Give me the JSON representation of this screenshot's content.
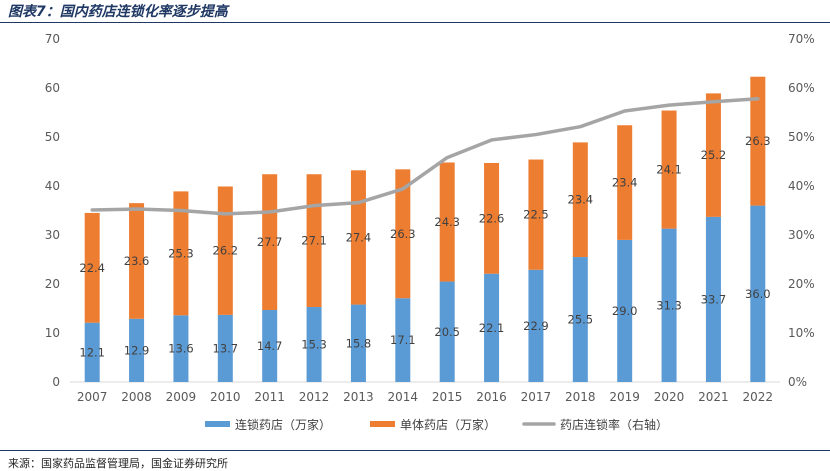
{
  "figure": {
    "title": "图表7：国内药店连锁化率逐步提高",
    "source": "来源：国家药品监督管理局，国金证券研究所"
  },
  "chart_data": {
    "type": "bar",
    "stacked": true,
    "categories": [
      "2007",
      "2008",
      "2009",
      "2010",
      "2011",
      "2012",
      "2013",
      "2014",
      "2015",
      "2016",
      "2017",
      "2018",
      "2019",
      "2020",
      "2021",
      "2022"
    ],
    "series": [
      {
        "name": "连锁药店（万家）",
        "type": "bar",
        "axis": "left",
        "color": "#5b9bd5",
        "values": [
          12.1,
          12.9,
          13.6,
          13.7,
          14.7,
          15.3,
          15.8,
          17.1,
          20.5,
          22.1,
          22.9,
          25.5,
          29.0,
          31.3,
          33.7,
          36.0
        ],
        "labels": [
          "12.1",
          "12.9",
          "13.6",
          "13.7",
          "14.7",
          "15.3",
          "15.8",
          "17.1",
          "20.5",
          "22.1",
          "22.9",
          "25.5",
          "29.0",
          "31.3",
          "33.7",
          "36.0"
        ]
      },
      {
        "name": "单体药店（万家）",
        "type": "bar",
        "axis": "left",
        "color": "#ed7d31",
        "values": [
          22.4,
          23.6,
          25.3,
          26.2,
          27.7,
          27.1,
          27.4,
          26.3,
          24.3,
          22.6,
          22.5,
          23.4,
          23.4,
          24.1,
          25.2,
          26.3
        ],
        "labels": [
          "22.4",
          "23.6",
          "25.3",
          "26.2",
          "27.7",
          "27.1",
          "27.4",
          "26.3",
          "24.3",
          "22.6",
          "22.5",
          "23.4",
          "23.4",
          "24.1",
          "25.2",
          "26.3"
        ]
      },
      {
        "name": "药店连锁率（右轴）",
        "type": "line",
        "axis": "right",
        "color": "#a5a5a5",
        "values": [
          0.351,
          0.353,
          0.35,
          0.343,
          0.347,
          0.36,
          0.366,
          0.394,
          0.458,
          0.494,
          0.505,
          0.521,
          0.553,
          0.565,
          0.572,
          0.578
        ]
      }
    ],
    "y_left": {
      "min": 0,
      "max": 70,
      "ticks": [
        "0",
        "10",
        "20",
        "30",
        "40",
        "50",
        "60",
        "70"
      ]
    },
    "y_right": {
      "min": 0,
      "max": 0.7,
      "ticks": [
        "0%",
        "10%",
        "20%",
        "30%",
        "40%",
        "50%",
        "60%",
        "70%"
      ]
    },
    "legend_position": "bottom",
    "grid": false
  }
}
